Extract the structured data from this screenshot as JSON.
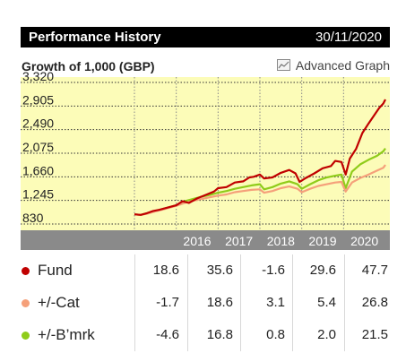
{
  "header": {
    "title": "Performance History",
    "date": "30/11/2020"
  },
  "subtitle": "Growth of 1,000 (GBP)",
  "advanced_graph": {
    "label": "Advanced Graph",
    "icon": "chart-icon"
  },
  "colors": {
    "fund": "#c00000",
    "cat": "#f5a07a",
    "bmk": "#8fcc1a",
    "plot_bg": "#fcfcb8",
    "axis_band": "#8a8a8a"
  },
  "chart_data": {
    "type": "line",
    "title": "Growth of 1,000 (GBP)",
    "yticks": [
      830,
      1245,
      1660,
      2075,
      2490,
      2905,
      3320
    ],
    "ytick_labels": [
      "830",
      "1,245",
      "1,660",
      "2,075",
      "2,490",
      "2,905",
      "3,320"
    ],
    "ylim": [
      830,
      3320
    ],
    "xlim": [
      2015.0,
      2021.0
    ],
    "xtick_labels": [
      "2016",
      "2017",
      "2018",
      "2019",
      "2020"
    ],
    "xticks": [
      2016,
      2017,
      2018,
      2019,
      2020
    ],
    "series": [
      {
        "name": "Fund",
        "color": "#c00000",
        "points": [
          [
            2015.0,
            1000
          ],
          [
            2015.15,
            990
          ],
          [
            2015.3,
            1020
          ],
          [
            2015.45,
            1060
          ],
          [
            2015.6,
            1080
          ],
          [
            2015.8,
            1120
          ],
          [
            2016.0,
            1160
          ],
          [
            2016.15,
            1230
          ],
          [
            2016.3,
            1200
          ],
          [
            2016.5,
            1280
          ],
          [
            2016.7,
            1340
          ],
          [
            2016.9,
            1400
          ],
          [
            2017.0,
            1460
          ],
          [
            2017.2,
            1480
          ],
          [
            2017.4,
            1560
          ],
          [
            2017.6,
            1580
          ],
          [
            2017.75,
            1650
          ],
          [
            2017.85,
            1660
          ],
          [
            2018.0,
            1700
          ],
          [
            2018.1,
            1630
          ],
          [
            2018.3,
            1650
          ],
          [
            2018.5,
            1730
          ],
          [
            2018.7,
            1780
          ],
          [
            2018.85,
            1720
          ],
          [
            2018.95,
            1570
          ],
          [
            2019.1,
            1640
          ],
          [
            2019.3,
            1720
          ],
          [
            2019.5,
            1810
          ],
          [
            2019.7,
            1850
          ],
          [
            2019.8,
            1940
          ],
          [
            2019.95,
            1920
          ],
          [
            2020.05,
            1700
          ],
          [
            2020.15,
            1980
          ],
          [
            2020.3,
            2150
          ],
          [
            2020.45,
            2430
          ],
          [
            2020.6,
            2600
          ],
          [
            2020.75,
            2760
          ],
          [
            2020.85,
            2870
          ],
          [
            2020.95,
            2950
          ],
          [
            2021.0,
            3020
          ]
        ]
      },
      {
        "name": "+/-Cat",
        "color": "#f5a07a",
        "points": [
          [
            2015.0,
            1000
          ],
          [
            2015.15,
            990
          ],
          [
            2015.3,
            1010
          ],
          [
            2015.5,
            1050
          ],
          [
            2015.7,
            1090
          ],
          [
            2015.9,
            1130
          ],
          [
            2016.0,
            1150
          ],
          [
            2016.2,
            1200
          ],
          [
            2016.4,
            1240
          ],
          [
            2016.6,
            1270
          ],
          [
            2016.8,
            1300
          ],
          [
            2017.0,
            1330
          ],
          [
            2017.2,
            1350
          ],
          [
            2017.4,
            1390
          ],
          [
            2017.6,
            1410
          ],
          [
            2017.8,
            1430
          ],
          [
            2018.0,
            1440
          ],
          [
            2018.1,
            1380
          ],
          [
            2018.3,
            1410
          ],
          [
            2018.5,
            1460
          ],
          [
            2018.7,
            1490
          ],
          [
            2018.9,
            1450
          ],
          [
            2019.0,
            1390
          ],
          [
            2019.2,
            1450
          ],
          [
            2019.4,
            1500
          ],
          [
            2019.6,
            1530
          ],
          [
            2019.8,
            1560
          ],
          [
            2019.95,
            1570
          ],
          [
            2020.05,
            1400
          ],
          [
            2020.2,
            1560
          ],
          [
            2020.4,
            1640
          ],
          [
            2020.6,
            1700
          ],
          [
            2020.8,
            1770
          ],
          [
            2020.95,
            1820
          ],
          [
            2021.0,
            1870
          ]
        ]
      },
      {
        "name": "+/-B’mrk",
        "color": "#8fcc1a",
        "points": [
          [
            2015.0,
            1000
          ],
          [
            2015.15,
            990
          ],
          [
            2015.3,
            1020
          ],
          [
            2015.5,
            1060
          ],
          [
            2015.7,
            1100
          ],
          [
            2015.9,
            1140
          ],
          [
            2016.0,
            1160
          ],
          [
            2016.2,
            1230
          ],
          [
            2016.4,
            1270
          ],
          [
            2016.6,
            1310
          ],
          [
            2016.8,
            1340
          ],
          [
            2017.0,
            1380
          ],
          [
            2017.2,
            1410
          ],
          [
            2017.4,
            1450
          ],
          [
            2017.6,
            1480
          ],
          [
            2017.8,
            1510
          ],
          [
            2018.0,
            1530
          ],
          [
            2018.1,
            1440
          ],
          [
            2018.3,
            1480
          ],
          [
            2018.5,
            1540
          ],
          [
            2018.7,
            1580
          ],
          [
            2018.9,
            1530
          ],
          [
            2019.0,
            1450
          ],
          [
            2019.2,
            1530
          ],
          [
            2019.4,
            1600
          ],
          [
            2019.6,
            1650
          ],
          [
            2019.8,
            1680
          ],
          [
            2019.95,
            1700
          ],
          [
            2020.05,
            1460
          ],
          [
            2020.2,
            1750
          ],
          [
            2020.4,
            1880
          ],
          [
            2020.6,
            1960
          ],
          [
            2020.8,
            2030
          ],
          [
            2020.95,
            2110
          ],
          [
            2021.0,
            2160
          ]
        ]
      }
    ]
  },
  "stats": {
    "rows": [
      {
        "label": "Fund",
        "values": [
          "18.6",
          "35.6",
          "-1.6",
          "29.6",
          "47.7"
        ]
      },
      {
        "label": "+/-Cat",
        "values": [
          "-1.7",
          "18.6",
          "3.1",
          "5.4",
          "26.8"
        ]
      },
      {
        "label": "+/-B’mrk",
        "values": [
          "-4.6",
          "16.8",
          "0.8",
          "2.0",
          "21.5"
        ]
      }
    ]
  }
}
